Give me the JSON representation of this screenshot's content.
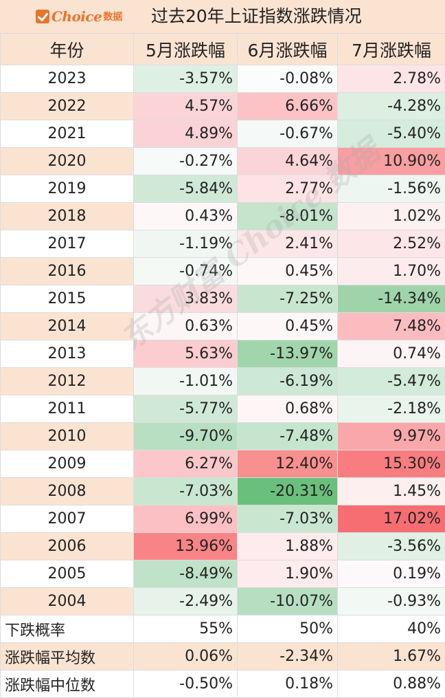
{
  "header": {
    "logo": {
      "text": "Choice",
      "cn": "数据"
    },
    "title": "过去20年上证指数涨跌情况"
  },
  "table": {
    "columns": [
      "年份",
      "5月涨跌幅",
      "6月涨跌幅",
      "7月涨跌幅"
    ],
    "rows": [
      {
        "year": "2023",
        "cells": [
          {
            "v": "-3.57%",
            "bg": "#deefe3"
          },
          {
            "v": "-0.08%",
            "bg": "#fbfcfc"
          },
          {
            "v": "2.78%",
            "bg": "#fde5e7"
          }
        ]
      },
      {
        "year": "2022",
        "cells": [
          {
            "v": "4.57%",
            "bg": "#fbd4d7"
          },
          {
            "v": "6.66%",
            "bg": "#fbc3c6"
          },
          {
            "v": "-4.28%",
            "bg": "#dcefe1"
          }
        ]
      },
      {
        "year": "2021",
        "cells": [
          {
            "v": "4.89%",
            "bg": "#fbd3d6"
          },
          {
            "v": "-0.67%",
            "bg": "#f5f9f7"
          },
          {
            "v": "-5.40%",
            "bg": "#d6ecdc"
          }
        ]
      },
      {
        "year": "2020",
        "cells": [
          {
            "v": "-0.27%",
            "bg": "#f6faf8"
          },
          {
            "v": "4.64%",
            "bg": "#fbd4d7"
          },
          {
            "v": "10.90%",
            "bg": "#f99ea1"
          }
        ]
      },
      {
        "year": "2019",
        "cells": [
          {
            "v": "-5.84%",
            "bg": "#cfe9d6"
          },
          {
            "v": "2.77%",
            "bg": "#fde3e5"
          },
          {
            "v": "-1.56%",
            "bg": "#eef6f1"
          }
        ]
      },
      {
        "year": "2018",
        "cells": [
          {
            "v": "0.43%",
            "bg": "#fdf7f8"
          },
          {
            "v": "-8.01%",
            "bg": "#c4e4cc"
          },
          {
            "v": "1.02%",
            "bg": "#fdf0f1"
          }
        ]
      },
      {
        "year": "2017",
        "cells": [
          {
            "v": "-1.19%",
            "bg": "#f0f7f2"
          },
          {
            "v": "2.41%",
            "bg": "#fce6e8"
          },
          {
            "v": "2.52%",
            "bg": "#fce6e8"
          }
        ]
      },
      {
        "year": "2016",
        "cells": [
          {
            "v": "-0.74%",
            "bg": "#f4f9f6"
          },
          {
            "v": "0.45%",
            "bg": "#fdf7f8"
          },
          {
            "v": "1.70%",
            "bg": "#fdecee"
          }
        ]
      },
      {
        "year": "2015",
        "cells": [
          {
            "v": "3.83%",
            "bg": "#fbdcde"
          },
          {
            "v": "-7.25%",
            "bg": "#c8e6cf"
          },
          {
            "v": "-14.34%",
            "bg": "#9fd4aa"
          }
        ]
      },
      {
        "year": "2014",
        "cells": [
          {
            "v": "0.63%",
            "bg": "#fdf6f7"
          },
          {
            "v": "0.45%",
            "bg": "#fdf7f8"
          },
          {
            "v": "7.48%",
            "bg": "#fbbcc0"
          }
        ]
      },
      {
        "year": "2013",
        "cells": [
          {
            "v": "5.63%",
            "bg": "#fbcdd0"
          },
          {
            "v": "-13.97%",
            "bg": "#a1d5ac"
          },
          {
            "v": "0.74%",
            "bg": "#fdf4f5"
          }
        ]
      },
      {
        "year": "2012",
        "cells": [
          {
            "v": "-1.01%",
            "bg": "#f1f8f3"
          },
          {
            "v": "-6.19%",
            "bg": "#cde8d4"
          },
          {
            "v": "-5.47%",
            "bg": "#d3ebd9"
          }
        ]
      },
      {
        "year": "2011",
        "cells": [
          {
            "v": "-5.77%",
            "bg": "#d0e9d7"
          },
          {
            "v": "0.68%",
            "bg": "#fdf5f6"
          },
          {
            "v": "-2.18%",
            "bg": "#e8f4ec"
          }
        ]
      },
      {
        "year": "2010",
        "cells": [
          {
            "v": "-9.70%",
            "bg": "#b9dfc3"
          },
          {
            "v": "-7.48%",
            "bg": "#c6e5ce"
          },
          {
            "v": "9.97%",
            "bg": "#f9a7aa"
          }
        ]
      },
      {
        "year": "2009",
        "cells": [
          {
            "v": "6.27%",
            "bg": "#fbc7ca"
          },
          {
            "v": "12.40%",
            "bg": "#f8908f"
          },
          {
            "v": "15.30%",
            "bg": "#f77d80"
          }
        ]
      },
      {
        "year": "2008",
        "cells": [
          {
            "v": "-7.03%",
            "bg": "#c9e7d0"
          },
          {
            "v": "-20.31%",
            "bg": "#6bbf7d"
          },
          {
            "v": "1.45%",
            "bg": "#fdeff0"
          }
        ]
      },
      {
        "year": "2007",
        "cells": [
          {
            "v": "6.99%",
            "bg": "#fbc0c3"
          },
          {
            "v": "-7.03%",
            "bg": "#c9e7d0"
          },
          {
            "v": "17.02%",
            "bg": "#f66e71"
          }
        ]
      },
      {
        "year": "2006",
        "cells": [
          {
            "v": "13.96%",
            "bg": "#f88487"
          },
          {
            "v": "1.88%",
            "bg": "#fdebed"
          },
          {
            "v": "-3.56%",
            "bg": "#e0f0e4"
          }
        ]
      },
      {
        "year": "2005",
        "cells": [
          {
            "v": "-8.49%",
            "bg": "#c0e2c9"
          },
          {
            "v": "1.90%",
            "bg": "#fdebed"
          },
          {
            "v": "0.19%",
            "bg": "#fdf9fa"
          }
        ]
      },
      {
        "year": "2004",
        "cells": [
          {
            "v": "-2.49%",
            "bg": "#e7f3ea"
          },
          {
            "v": "-10.07%",
            "bg": "#b7dec1"
          },
          {
            "v": "-0.93%",
            "bg": "#f2f8f4"
          }
        ]
      }
    ],
    "stats": [
      {
        "label": "下跌概率",
        "values": [
          "55%",
          "50%",
          "40%"
        ]
      },
      {
        "label": "涨跌幅平均数",
        "values": [
          "0.06%",
          "-2.34%",
          "1.67%"
        ]
      },
      {
        "label": "涨跌幅中位数",
        "values": [
          "-0.50%",
          "0.18%",
          "0.88%"
        ]
      }
    ]
  },
  "watermark": "东方财富 Choice 数据",
  "colors": {
    "header_bg": "#fbe3d2",
    "odd_year_bg": "#ffffff",
    "even_year_bg": "#fbe3d2",
    "brand": "#e8742a"
  }
}
